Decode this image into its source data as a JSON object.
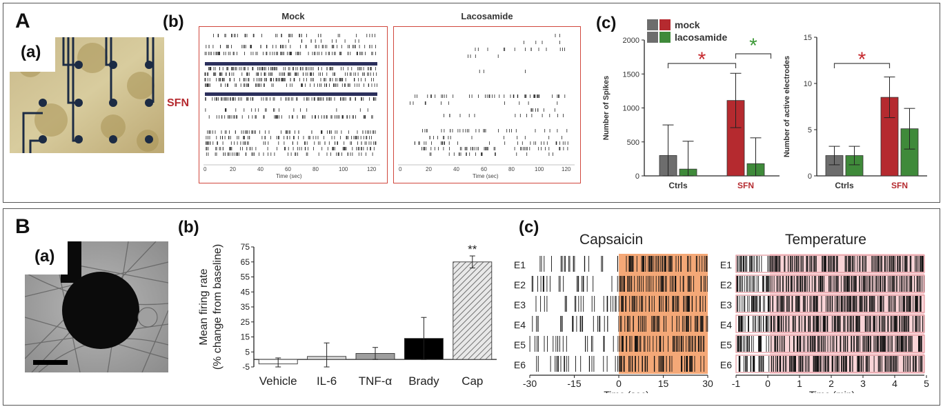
{
  "panels": {
    "A": {
      "letter": "A",
      "a": {
        "label": "(a)"
      },
      "b": {
        "label": "(b)",
        "side_label": "SFN",
        "mock_title": "Mock",
        "laco_title": "Lacosamide",
        "xlabel": "Time (sec)",
        "xticks": [
          "0",
          "20",
          "40",
          "60",
          "80",
          "100",
          "120"
        ]
      },
      "c": {
        "label": "(c)",
        "legend": [
          "mock",
          "lacosamide"
        ]
      }
    },
    "B": {
      "letter": "B",
      "a": {
        "label": "(a)"
      },
      "b": {
        "label": "(b)",
        "annotation": "**"
      },
      "c": {
        "label": "(c)",
        "cap_title": "Capsaicin",
        "temp_title": "Temperature",
        "cap_xlabel": "Time (sec)",
        "temp_xlabel": "Time (min)",
        "rows": [
          "E1",
          "E2",
          "E3",
          "E4",
          "E5",
          "E6"
        ],
        "cap_xticks": [
          "-30",
          "-15",
          "0",
          "15",
          "30"
        ],
        "temp_xticks": [
          "-1",
          "0",
          "1",
          "2",
          "3",
          "4",
          "5"
        ]
      }
    }
  },
  "colors": {
    "ctrl_mock": "#6d6d6d",
    "sfn_mock": "#b52a2f",
    "lacosamide": "#3f8a3a",
    "star_red": "#c62a2f",
    "star_green": "#3f9a3a",
    "capsaicin_shade": "#f4a877",
    "temperature_shade": "#f6c2c6"
  },
  "chart_data": [
    {
      "type": "bar",
      "categories": [
        "Ctrls",
        "SFN"
      ],
      "series": [
        {
          "name": "mock",
          "values": [
            300,
            1110
          ],
          "errors": [
            450,
            400
          ]
        },
        {
          "name": "lacosamide",
          "values": [
            100,
            180
          ],
          "errors": [
            410,
            380
          ]
        }
      ],
      "xlabel": "",
      "ylabel": "Number of Spikes",
      "ylim": [
        0,
        2000
      ],
      "yticks": [
        "0",
        "500",
        "1000",
        "1500",
        "2000"
      ],
      "annotations": [
        "*",
        "*"
      ]
    },
    {
      "type": "bar",
      "categories": [
        "Ctrls",
        "SFN"
      ],
      "series": [
        {
          "name": "mock",
          "values": [
            2.2,
            8.5
          ],
          "errors": [
            1.0,
            2.2
          ]
        },
        {
          "name": "lacosamide",
          "values": [
            2.2,
            5.1
          ],
          "errors": [
            1.0,
            2.2
          ]
        }
      ],
      "xlabel": "",
      "ylabel": "Number of active electrodes",
      "ylim": [
        0,
        15
      ],
      "yticks": [
        "0",
        "5",
        "10",
        "15"
      ],
      "annotations": [
        "*"
      ]
    },
    {
      "type": "bar",
      "categories": [
        "Vehicle",
        "IL-6",
        "TNF-α",
        "Brady",
        "Cap"
      ],
      "values": [
        -3,
        2,
        4,
        14,
        65
      ],
      "errors": [
        4,
        9,
        4,
        14,
        4
      ],
      "xlabel": "",
      "ylabel": "Mean firing rate\n(% change from baseline)",
      "ylabel_lines": [
        "Mean firing rate",
        "(% change from baseline)"
      ],
      "ylim": [
        -5,
        75
      ],
      "yticks": [
        "-5",
        "5",
        "15",
        "25",
        "35",
        "45",
        "55",
        "65",
        "75"
      ]
    }
  ]
}
